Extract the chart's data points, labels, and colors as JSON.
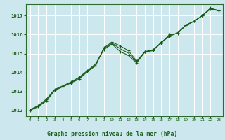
{
  "title": "Graphe pression niveau de la mer (hPa)",
  "bg_color": "#cce8ee",
  "grid_color": "#b0d8e0",
  "line_color": "#1a5c1a",
  "marker_color": "#1a5c1a",
  "xlim": [
    -0.5,
    23.5
  ],
  "ylim": [
    1011.7,
    1017.6
  ],
  "yticks": [
    1012,
    1013,
    1014,
    1015,
    1016,
    1017
  ],
  "xticks": [
    0,
    1,
    2,
    3,
    4,
    5,
    6,
    7,
    8,
    9,
    10,
    11,
    12,
    13,
    14,
    15,
    16,
    17,
    18,
    19,
    20,
    21,
    22,
    23
  ],
  "xtick_labels": [
    "0",
    "1",
    "2",
    "3",
    "4",
    "5",
    "6",
    "7",
    "8",
    "9",
    "10",
    "11",
    "12",
    "13",
    "14",
    "15",
    "16",
    "17",
    "18",
    "19",
    "20",
    "21",
    "22",
    "23"
  ],
  "series1_x": [
    0,
    1,
    2,
    3,
    4,
    5,
    6,
    7,
    8,
    9,
    10,
    11,
    12,
    13,
    14,
    15,
    16,
    17,
    18,
    19,
    20,
    21,
    22,
    23
  ],
  "series1_y": [
    1012.0,
    1012.2,
    1012.5,
    1013.05,
    1013.25,
    1013.45,
    1013.65,
    1014.05,
    1014.35,
    1015.3,
    1015.6,
    1015.4,
    1015.15,
    1014.6,
    1015.1,
    1015.2,
    1015.55,
    1016.0,
    1016.05,
    1016.5,
    1016.7,
    1017.0,
    1017.4,
    1017.25
  ],
  "series2_x": [
    0,
    1,
    2,
    3,
    4,
    5,
    6,
    7,
    8,
    9,
    10,
    11,
    12,
    13,
    14,
    15,
    16,
    17,
    18,
    19,
    20,
    21,
    22,
    23
  ],
  "series2_y": [
    1012.05,
    1012.25,
    1012.6,
    1013.1,
    1013.3,
    1013.5,
    1013.75,
    1014.1,
    1014.45,
    1015.2,
    1015.5,
    1015.1,
    1014.9,
    1014.5,
    1015.08,
    1015.15,
    1015.6,
    1015.9,
    1016.1,
    1016.5,
    1016.7,
    1017.0,
    1017.35,
    1017.25
  ],
  "series3_x": [
    0,
    1,
    2,
    3,
    4,
    5,
    6,
    7,
    8,
    9,
    10,
    11,
    12,
    13,
    14,
    15,
    16,
    17,
    18,
    19,
    20,
    21,
    22,
    23
  ],
  "series3_y": [
    1012.02,
    1012.22,
    1012.55,
    1013.07,
    1013.27,
    1013.47,
    1013.7,
    1014.07,
    1014.4,
    1015.25,
    1015.55,
    1015.25,
    1015.02,
    1014.55,
    1015.09,
    1015.17,
    1015.57,
    1015.95,
    1016.07,
    1016.5,
    1016.7,
    1017.0,
    1017.37,
    1017.27
  ]
}
